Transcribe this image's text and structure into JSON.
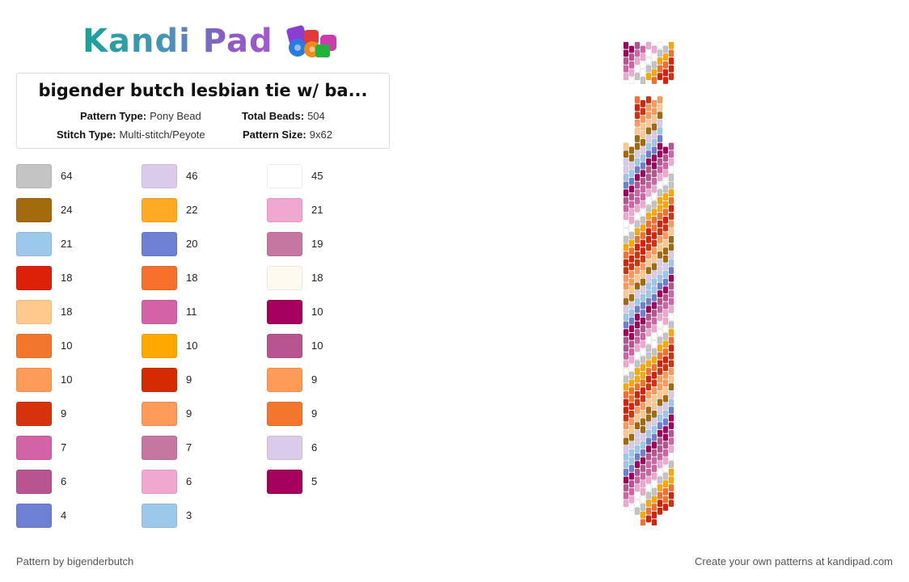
{
  "logo": {
    "text": "Kandi Pad"
  },
  "pattern_info": {
    "title": "bigender butch lesbian tie w/ ba...",
    "pattern_type_label": "Pattern Type:",
    "pattern_type": "Pony Bead",
    "total_beads_label": "Total Beads:",
    "total_beads": "504",
    "stitch_type_label": "Stitch Type:",
    "stitch_type": "Multi-stitch/Peyote",
    "pattern_size_label": "Pattern Size:",
    "pattern_size": "9x62"
  },
  "palette": [
    [
      {
        "color": "#c4c4c4",
        "count": "64"
      },
      {
        "color": "#a36a0e",
        "count": "24"
      },
      {
        "color": "#9cc8eb",
        "count": "21"
      },
      {
        "color": "#dd2008",
        "count": "18"
      },
      {
        "color": "#ffc98e",
        "count": "18"
      },
      {
        "color": "#f2762c",
        "count": "10"
      },
      {
        "color": "#ff9a58",
        "count": "10"
      },
      {
        "color": "#d6320c",
        "count": "9"
      },
      {
        "color": "#d462a6",
        "count": "7"
      },
      {
        "color": "#b85590",
        "count": "6"
      },
      {
        "color": "#6d80d4",
        "count": "4"
      }
    ],
    [
      {
        "color": "#d9cbe9",
        "count": "46"
      },
      {
        "color": "#ffaa22",
        "count": "22"
      },
      {
        "color": "#6d80d4",
        "count": "20"
      },
      {
        "color": "#f7712c",
        "count": "18"
      },
      {
        "color": "#d462a6",
        "count": "11"
      },
      {
        "color": "#ffa800",
        "count": "10"
      },
      {
        "color": "#d62a02",
        "count": "9"
      },
      {
        "color": "#ff9a58",
        "count": "9"
      },
      {
        "color": "#c577a2",
        "count": "7"
      },
      {
        "color": "#f0a8d0",
        "count": "6"
      },
      {
        "color": "#9cc8eb",
        "count": "3"
      }
    ],
    [
      {
        "color": "#ffffff",
        "count": "45"
      },
      {
        "color": "#f0a8d0",
        "count": "21"
      },
      {
        "color": "#c577a2",
        "count": "19"
      },
      {
        "color": "#fffaf0",
        "count": "18"
      },
      {
        "color": "#a5005e",
        "count": "10"
      },
      {
        "color": "#b85590",
        "count": "10"
      },
      {
        "color": "#ff9a58",
        "count": "9"
      },
      {
        "color": "#f2762c",
        "count": "9"
      },
      {
        "color": "#d9cbe9",
        "count": "6"
      },
      {
        "color": "#a5005e",
        "count": "5"
      }
    ]
  ],
  "stripe_colors": [
    "#a5005e",
    "#b85590",
    "#d462a6",
    "#f0a8d0",
    "#ffffff",
    "#c4c4c4",
    "#ffa800",
    "#f7712c",
    "#dd2008",
    "#d6320c",
    "#ff9a58",
    "#ffc98e",
    "#a36a0e",
    "#d9cbe9",
    "#9cc8eb",
    "#6d80d4"
  ],
  "footer": {
    "credit": "Pattern by bigenderbutch",
    "promo": "Create your own patterns at kandipad.com"
  }
}
